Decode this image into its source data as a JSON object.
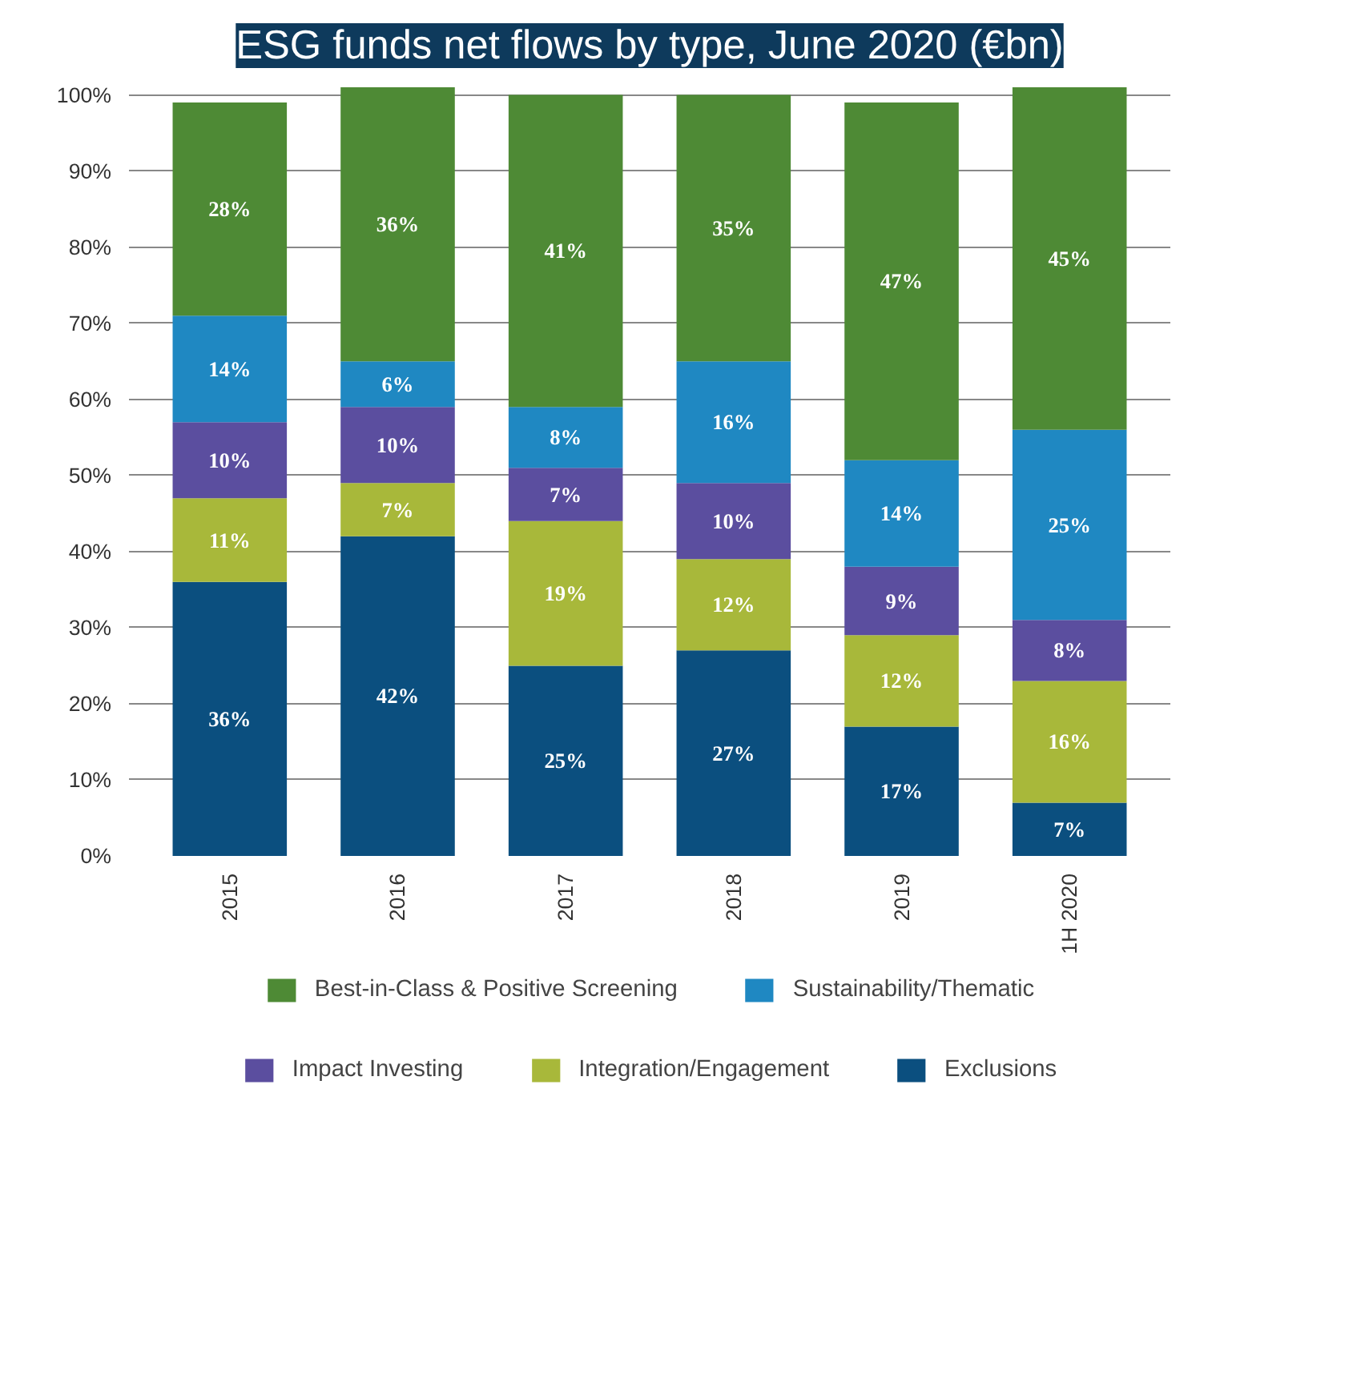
{
  "chart_data": {
    "type": "bar",
    "title": "ESG funds net flows by type, June 2020 (€bn)",
    "stacked": true,
    "categories": [
      "2015",
      "2016",
      "2017",
      "2018",
      "2019",
      "1H 2020"
    ],
    "series": [
      {
        "name": "Exclusions",
        "color": "#0b4f7f",
        "values": [
          36,
          42,
          25,
          27,
          17,
          7
        ],
        "value_labels": [
          "36%",
          "42%",
          "25%",
          "27%",
          "17%",
          "7%"
        ]
      },
      {
        "name": "Integration/Engagement",
        "color": "#a8b83a",
        "values": [
          11,
          7,
          19,
          12,
          12,
          16
        ],
        "value_labels": [
          "11%",
          "7%",
          "19%",
          "12%",
          "12%",
          "16%"
        ]
      },
      {
        "name": "Impact Investing",
        "color": "#5b4e9f",
        "values": [
          10,
          10,
          7,
          10,
          9,
          8
        ],
        "value_labels": [
          "10%",
          "10%",
          "7%",
          "10%",
          "9%",
          "8%"
        ]
      },
      {
        "name": "Sustainability/Thematic",
        "color": "#1f88c2",
        "values": [
          14,
          6,
          8,
          16,
          14,
          25
        ],
        "value_labels": [
          "14%",
          "6%",
          "8%",
          "16%",
          "14%",
          "25%"
        ]
      },
      {
        "name": "Best-in-Class & Positive Screening",
        "color": "#4e8a35",
        "values": [
          28,
          36,
          41,
          35,
          47,
          45
        ],
        "value_labels": [
          "28%",
          "36%",
          "41%",
          "35%",
          "47%",
          "45%"
        ]
      }
    ],
    "ylim": [
      0,
      101
    ],
    "yticks": [
      {
        "value": 0,
        "label": "0%"
      },
      {
        "value": 10,
        "label": "10%"
      },
      {
        "value": 20,
        "label": "20%"
      },
      {
        "value": 30,
        "label": "30%"
      },
      {
        "value": 40,
        "label": "40%"
      },
      {
        "value": 50,
        "label": "50%"
      },
      {
        "value": 60,
        "label": "60%"
      },
      {
        "value": 70,
        "label": "70%"
      },
      {
        "value": 80,
        "label": "80%"
      },
      {
        "value": 90,
        "label": "90%"
      },
      {
        "value": 100,
        "label": "100%"
      }
    ],
    "grid": "y",
    "legend": "bottom"
  }
}
